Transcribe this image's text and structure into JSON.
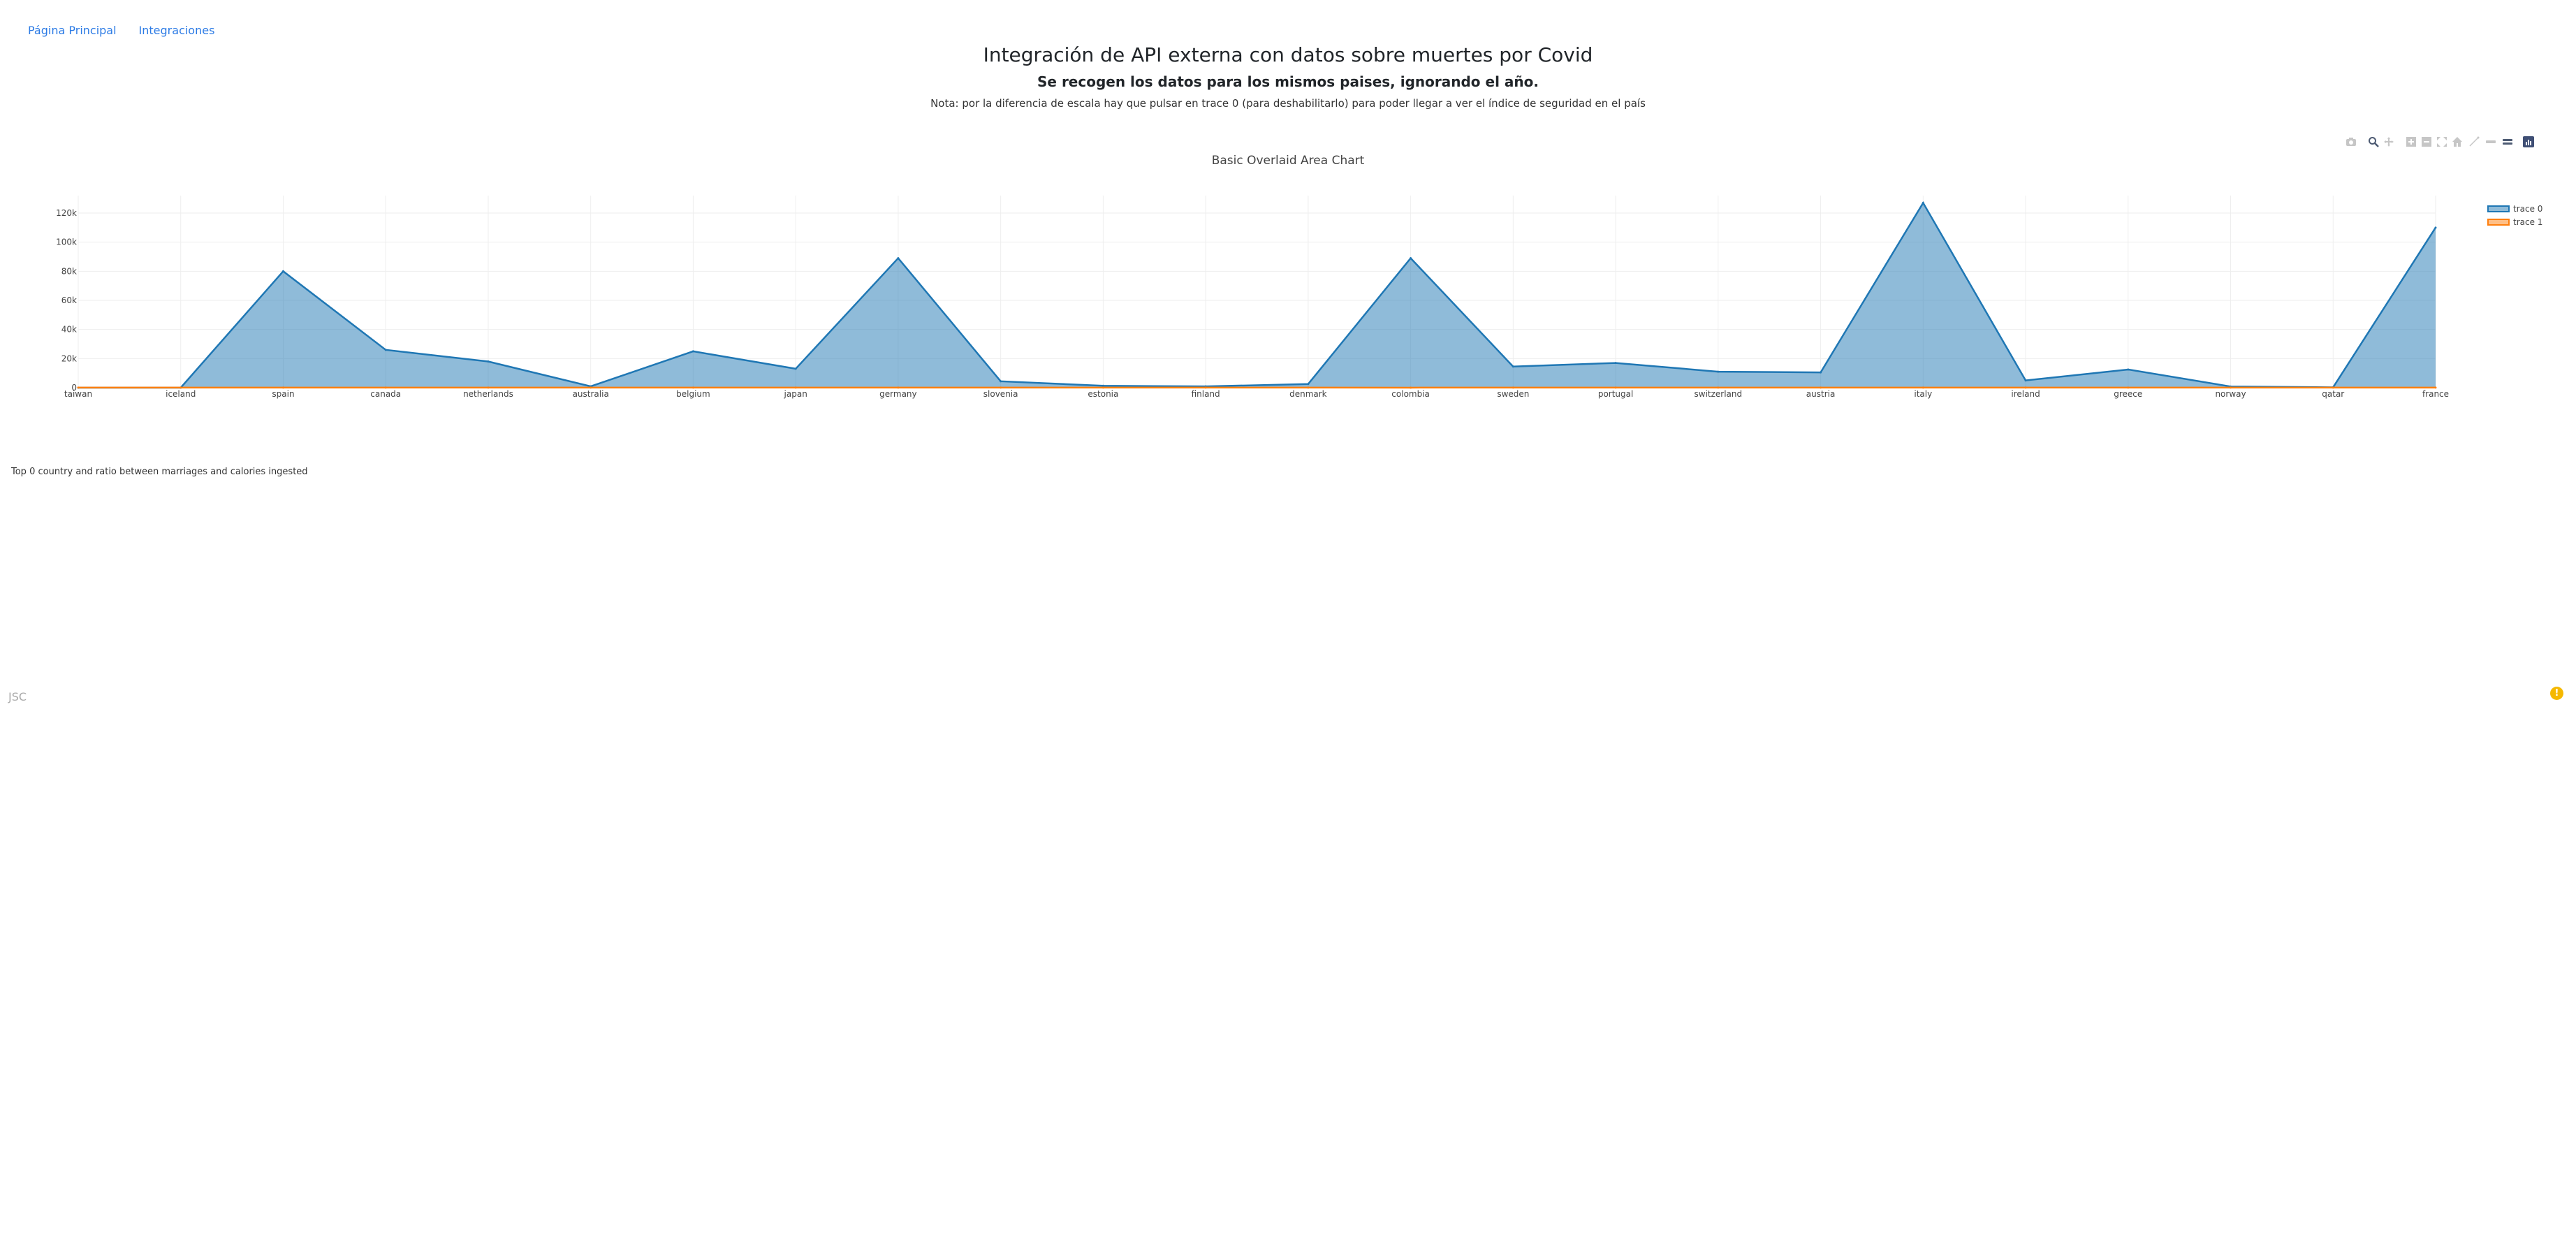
{
  "nav": {
    "home": "Página Principal",
    "integrations": "Integraciones"
  },
  "header": {
    "title": "Integración de API externa con datos sobre muertes por Covid",
    "subtitle": "Se recogen los datos para los mismos paises, ignorando el año.",
    "note": "Nota: por la diferencia de escala hay que pulsar en trace 0 (para deshabilitarlo) para poder llegar a ver el índice de seguridad en el país"
  },
  "modebar": [
    "camera-icon",
    "zoom-icon",
    "pan-icon",
    "zoom-in-icon",
    "zoom-out-icon",
    "autoscale-icon",
    "home-icon",
    "spike-lines-icon",
    "hover-closest-icon",
    "hover-compare-icon",
    "plotly-logo-icon"
  ],
  "chart_data": {
    "type": "area",
    "title": "Basic Overlaid Area Chart",
    "categories": [
      "taiwan",
      "iceland",
      "spain",
      "canada",
      "netherlands",
      "australia",
      "belgium",
      "japan",
      "germany",
      "slovenia",
      "estonia",
      "finland",
      "denmark",
      "colombia",
      "sweden",
      "portugal",
      "switzerland",
      "austria",
      "italy",
      "ireland",
      "greece",
      "norway",
      "qatar",
      "france"
    ],
    "series": [
      {
        "name": "trace 0",
        "color": "#1f77b4",
        "values": [
          10,
          29,
          80000,
          26000,
          18000,
          910,
          25000,
          13000,
          89000,
          4400,
          1300,
          900,
          2500,
          89000,
          14500,
          17000,
          11000,
          10500,
          127000,
          5000,
          12500,
          810,
          250,
          110000
        ]
      },
      {
        "name": "trace 1",
        "color": "#ff7f0e",
        "values": [
          60,
          70,
          65,
          75,
          80,
          60,
          65,
          70,
          60,
          70,
          75,
          70,
          80,
          30,
          75,
          70,
          80,
          75,
          55,
          75,
          60,
          85,
          85,
          60
        ]
      }
    ],
    "y_ticks": [
      "0",
      "20k",
      "40k",
      "60k",
      "80k",
      "100k",
      "120k"
    ],
    "ylim": [
      0,
      132000
    ],
    "grid": true,
    "legend_position": "top-right"
  },
  "second_chart": {
    "caption": "Top 0 country and ratio between marriages and calories ingested"
  },
  "footer": {
    "brand": "JSC"
  },
  "alert": {
    "symbol": "!"
  }
}
